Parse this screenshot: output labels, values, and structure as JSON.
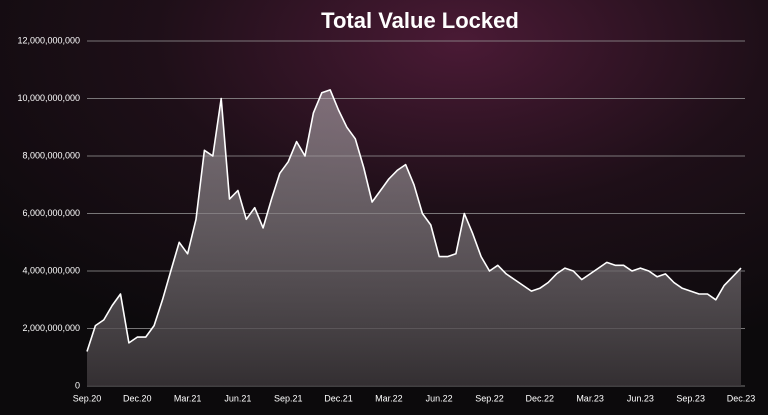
{
  "chart_data": {
    "type": "area",
    "title": "Total Value Locked",
    "categories": [
      "Sep.20",
      null,
      null,
      null,
      null,
      null,
      "Dec.20",
      null,
      null,
      null,
      null,
      null,
      "Mar.21",
      null,
      null,
      null,
      null,
      null,
      "Jun.21",
      null,
      null,
      null,
      null,
      null,
      "Sep.21",
      null,
      null,
      null,
      null,
      null,
      "Dec.21",
      null,
      null,
      null,
      null,
      null,
      "Mar.22",
      null,
      null,
      null,
      null,
      null,
      "Jun.22",
      null,
      null,
      null,
      null,
      null,
      "Sep.22",
      null,
      null,
      null,
      null,
      null,
      "Dec.22",
      null,
      null,
      null,
      null,
      null,
      "Mar.23",
      null,
      null,
      null,
      null,
      null,
      "Jun.23",
      null,
      null,
      null,
      null,
      null,
      "Sep.23",
      null,
      null,
      null,
      null,
      null,
      "Dec.23"
    ],
    "values": [
      1200000000,
      2100000000,
      2300000000,
      2800000000,
      3200000000,
      1500000000,
      1700000000,
      1700000000,
      2100000000,
      3000000000,
      4000000000,
      5000000000,
      4600000000,
      5800000000,
      8200000000,
      8000000000,
      10000000000,
      6500000000,
      6800000000,
      5800000000,
      6200000000,
      5500000000,
      6500000000,
      7400000000,
      7800000000,
      8500000000,
      8000000000,
      9500000000,
      10200000000,
      10300000000,
      9600000000,
      9000000000,
      8600000000,
      7600000000,
      6400000000,
      6800000000,
      7200000000,
      7500000000,
      7700000000,
      7000000000,
      6000000000,
      5600000000,
      4500000000,
      4500000000,
      4600000000,
      6000000000,
      5300000000,
      4500000000,
      4000000000,
      4200000000,
      3900000000,
      3700000000,
      3500000000,
      3300000000,
      3400000000,
      3600000000,
      3900000000,
      4100000000,
      4000000000,
      3700000000,
      3900000000,
      4100000000,
      4300000000,
      4200000000,
      4200000000,
      4000000000,
      4100000000,
      4000000000,
      3800000000,
      3900000000,
      3600000000,
      3400000000,
      3300000000,
      3200000000,
      3200000000,
      3000000000,
      3500000000,
      3800000000,
      4100000000
    ],
    "color": "#ffffff",
    "ylim": [
      0,
      12000000000
    ],
    "yticks": [
      0,
      {
        "value": 2000000000,
        "label": "2,000,000,000"
      },
      {
        "value": 4000000000,
        "label": "4,000,000,000"
      },
      {
        "value": 6000000000,
        "label": "6,000,000,000"
      },
      {
        "value": 8000000000,
        "label": "8,000,000,000"
      },
      {
        "value": 10000000000,
        "label": "10,000,000,000"
      },
      {
        "value": 12000000000,
        "label": "12,000,000,000"
      }
    ],
    "grid": true
  }
}
